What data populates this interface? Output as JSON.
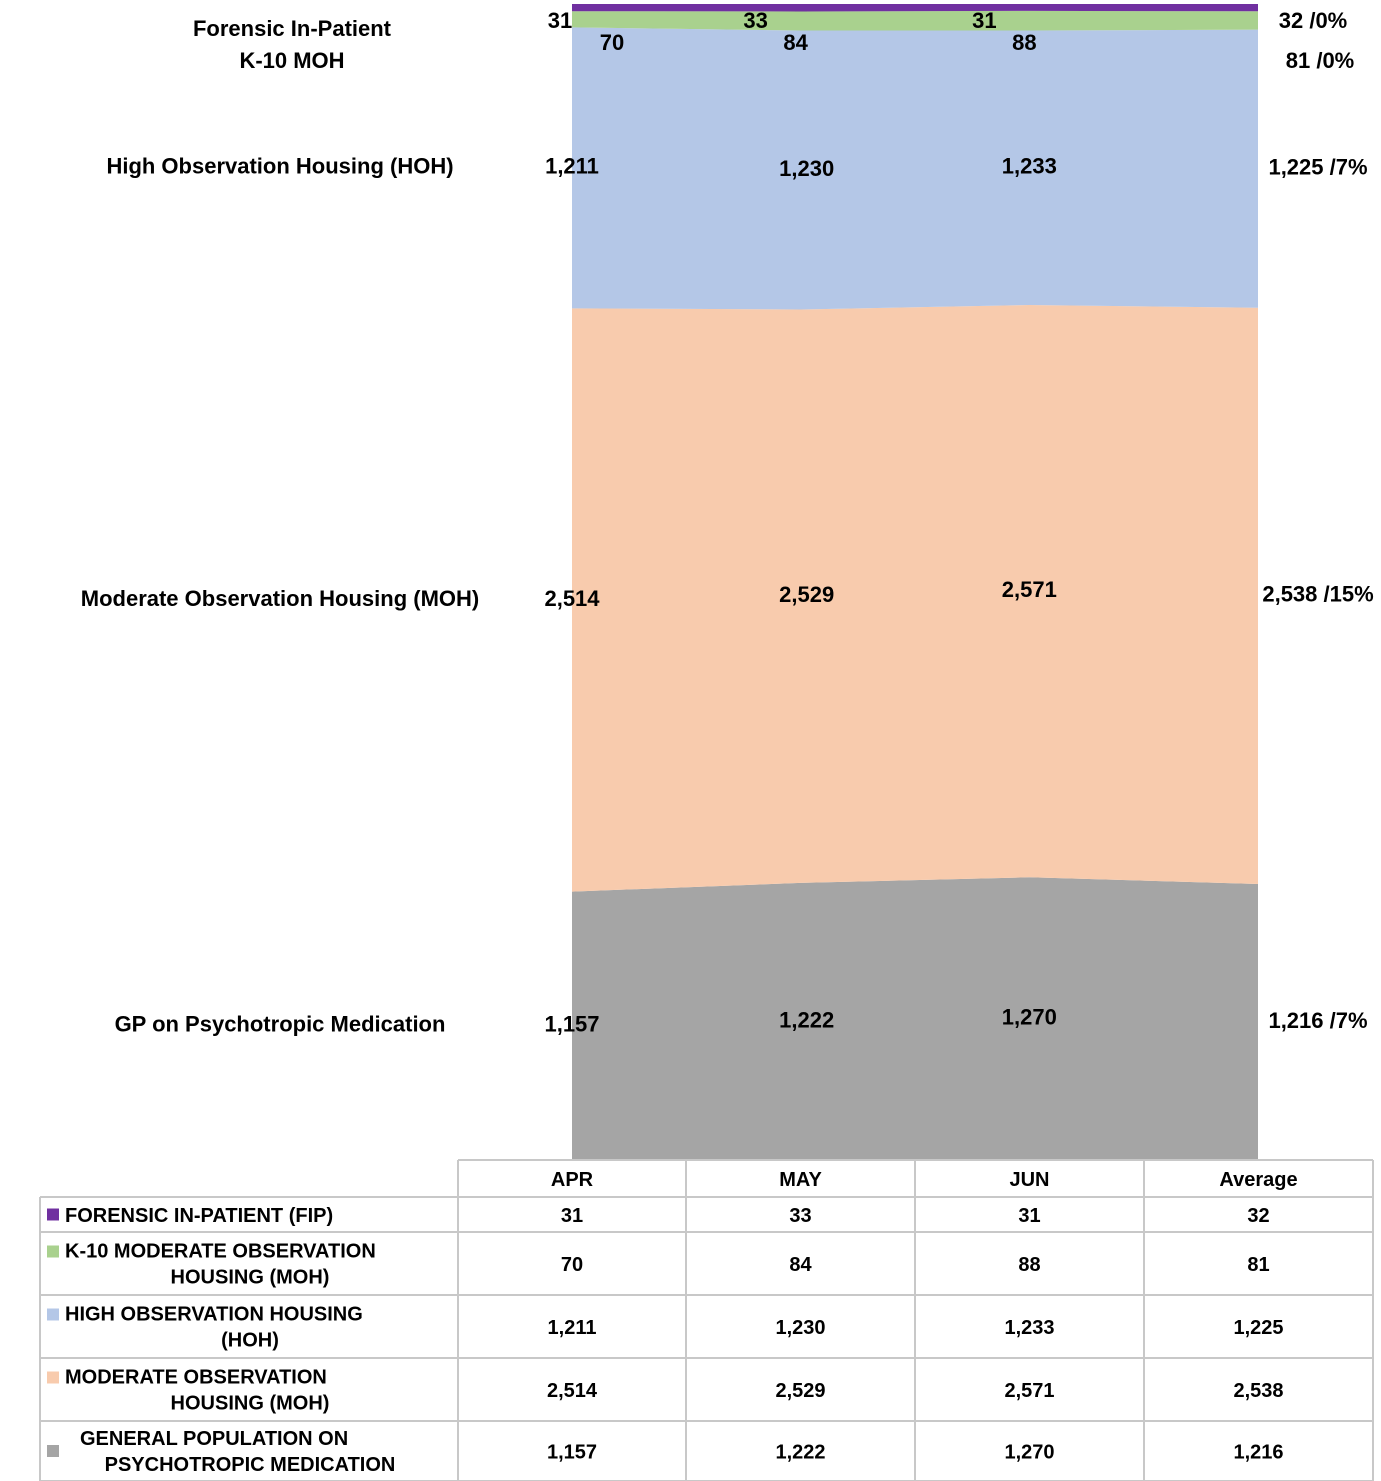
{
  "chart_data": {
    "type": "stacked_area_100",
    "categories": [
      "APR",
      "MAY",
      "JUN",
      "Average"
    ],
    "series": [
      {
        "name": "FORENSIC IN-PATIENT (FIP)",
        "label": "Forensic In-Patient",
        "color": "#7030a0",
        "values": [
          31,
          33,
          31,
          32
        ],
        "value_labels": [
          "31",
          "33",
          "31",
          "32 /0%"
        ],
        "table_labels": [
          "31",
          "33",
          "31",
          "32"
        ]
      },
      {
        "name": "K-10 MODERATE OBSERVATION HOUSING (MOH)",
        "label": "K-10 MOH",
        "color": "#a9d18e",
        "values": [
          70,
          84,
          88,
          81
        ],
        "value_labels": [
          "70",
          "84",
          "88",
          "81 /0%"
        ],
        "table_labels": [
          "70",
          "84",
          "88",
          "81"
        ]
      },
      {
        "name": "HIGH OBSERVATION HOUSING (HOH)",
        "label": "High Observation Housing (HOH)",
        "color": "#b4c7e7",
        "values": [
          1211,
          1230,
          1233,
          1225
        ],
        "value_labels": [
          "1,211",
          "1,230",
          "1,233",
          "1,225 /7%"
        ],
        "table_labels": [
          "1,211",
          "1,230",
          "1,233",
          "1,225"
        ]
      },
      {
        "name": "MODERATE OBSERVATION HOUSING (MOH)",
        "label": "Moderate Observation Housing (MOH)",
        "color": "#f8cbad",
        "values": [
          2514,
          2529,
          2571,
          2538
        ],
        "value_labels": [
          "2,514",
          "2,529",
          "2,571",
          "2,538 /15%"
        ],
        "table_labels": [
          "2,514",
          "2,529",
          "2,571",
          "2,538"
        ]
      },
      {
        "name": "GENERAL POPULATION ON PSYCHOTROPIC MEDICATION",
        "label": "GP on Psychotropic Medication",
        "color": "#a5a5a5",
        "values": [
          1157,
          1222,
          1270,
          1216
        ],
        "value_labels": [
          "1,157",
          "1,222",
          "1,270",
          "1,216 /7%"
        ],
        "table_labels": [
          "1,157",
          "1,222",
          "1,270",
          "1,216"
        ]
      }
    ]
  }
}
